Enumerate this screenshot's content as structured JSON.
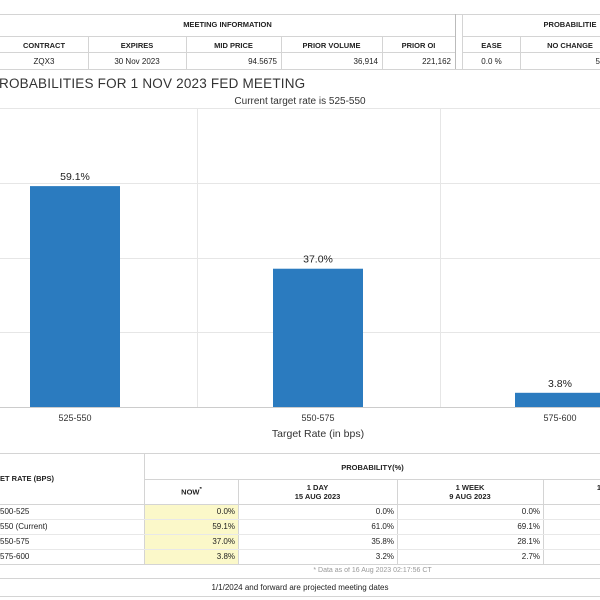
{
  "meeting_info": {
    "title": "MEETING INFORMATION",
    "headers": [
      "CONTRACT",
      "EXPIRES",
      "MID PRICE",
      "PRIOR VOLUME",
      "PRIOR OI"
    ],
    "values": [
      "ZQX3",
      "30 Nov 2023",
      "94.5675",
      "36,914",
      "221,162"
    ]
  },
  "probabilities_panel": {
    "title": "PROBABILITIE",
    "headers": [
      "EASE",
      "NO CHANGE"
    ],
    "values": [
      "0.0 %",
      "5"
    ]
  },
  "section_title": "ROBABILITIES FOR 1 NOV 2023 FED MEETING",
  "chart_data": {
    "type": "bar",
    "title": "Current target rate is 525-550",
    "xlabel": "Target Rate (in bps)",
    "categories": [
      "525-550",
      "550-575",
      "575-600"
    ],
    "values": [
      59.1,
      37.0,
      3.8
    ],
    "value_labels": [
      "59.1%",
      "37.0%",
      "3.8%"
    ],
    "ylim": [
      0,
      80
    ],
    "bar_color": "#2b7bbf",
    "grid": true
  },
  "prob_table": {
    "first_header": "ET RATE (BPS)",
    "group_header": "PROBABILITY(%)",
    "columns": [
      {
        "line1": "NOW",
        "line2": "",
        "marker": "*"
      },
      {
        "line1": "1 DAY",
        "line2": "15 AUG 2023"
      },
      {
        "line1": "1 WEEK",
        "line2": "9 AUG 2023"
      },
      {
        "line1": "1",
        "line2": ""
      }
    ],
    "rows": [
      {
        "rate": "500-525",
        "now": "0.0%",
        "day": "0.0%",
        "week": "0.0%"
      },
      {
        "rate": "550 (Current)",
        "now": "59.1%",
        "day": "61.0%",
        "week": "69.1%"
      },
      {
        "rate": "550-575",
        "now": "37.0%",
        "day": "35.8%",
        "week": "28.1%"
      },
      {
        "rate": "575-600",
        "now": "3.8%",
        "day": "3.2%",
        "week": "2.7%"
      }
    ],
    "footnote": "* Data as of 16 Aug 2023 02:17:56 CT",
    "bottom_note": "1/1/2024 and forward are projected meeting dates"
  },
  "colors": {
    "highlight": "#fbf8c9",
    "bar": "#2b7bbf",
    "border": "#d4d4d4"
  }
}
